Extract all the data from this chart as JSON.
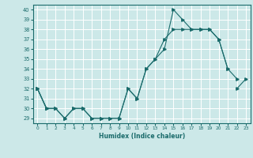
{
  "xlabel": "Humidex (Indice chaleur)",
  "bg_color": "#cce8e8",
  "line_color": "#1a6b6b",
  "grid_color": "#ffffff",
  "x_values": [
    0,
    1,
    2,
    3,
    4,
    5,
    6,
    7,
    8,
    9,
    10,
    11,
    12,
    13,
    14,
    15,
    16,
    17,
    18,
    19,
    20,
    21,
    22,
    23
  ],
  "line1": [
    32,
    30,
    30,
    29,
    30,
    30,
    29,
    29,
    29,
    29,
    32,
    31,
    34,
    35,
    36,
    40,
    39,
    38,
    38,
    38,
    37,
    34,
    null,
    null
  ],
  "line2": [
    32,
    30,
    30,
    29,
    30,
    30,
    29,
    29,
    29,
    29,
    32,
    31,
    34,
    35,
    37,
    38,
    38,
    38,
    38,
    38,
    37,
    34,
    33,
    null
  ],
  "line3": [
    32,
    30,
    null,
    null,
    null,
    null,
    null,
    null,
    null,
    null,
    null,
    null,
    null,
    null,
    null,
    null,
    null,
    null,
    null,
    null,
    null,
    null,
    32,
    33
  ],
  "ylim": [
    28.5,
    40.5
  ],
  "xlim": [
    -0.5,
    23.5
  ],
  "yticks": [
    29,
    30,
    31,
    32,
    33,
    34,
    35,
    36,
    37,
    38,
    39,
    40
  ],
  "xticks": [
    0,
    1,
    2,
    3,
    4,
    5,
    6,
    7,
    8,
    9,
    10,
    11,
    12,
    13,
    14,
    15,
    16,
    17,
    18,
    19,
    20,
    21,
    22,
    23
  ]
}
